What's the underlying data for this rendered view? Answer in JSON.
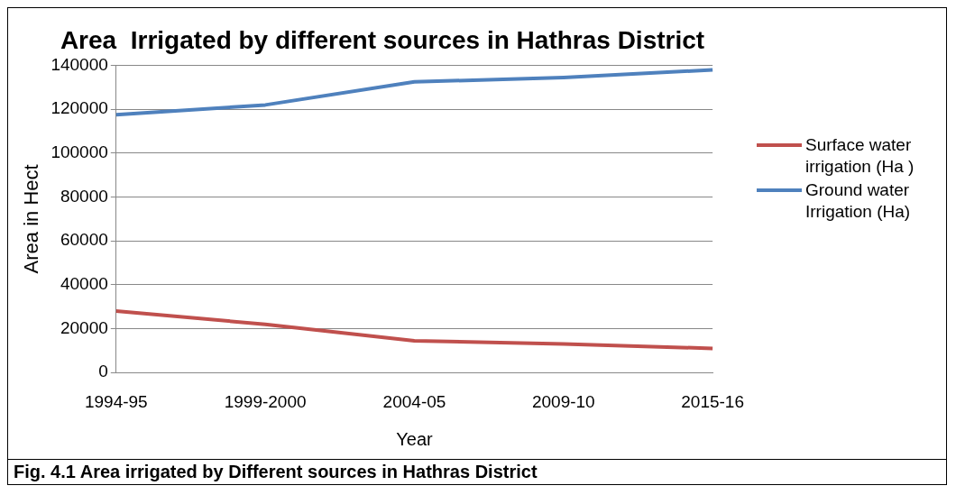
{
  "chart_data": {
    "type": "line",
    "title": "Area  Irrigated by different sources in Hathras District",
    "xlabel": "Year",
    "ylabel": "Area in Hect",
    "categories": [
      "1994-95",
      "1999-2000",
      "2004-05",
      "2009-10",
      "2015-16"
    ],
    "series": [
      {
        "name": "Surface water irrigation (Ha )",
        "color": "#c0504d",
        "values": [
          28000,
          22000,
          14500,
          13000,
          11000
        ]
      },
      {
        "name": "Ground water Irrigation (Ha)",
        "color": "#4f81bd",
        "values": [
          117500,
          122000,
          132500,
          134500,
          138000
        ]
      }
    ],
    "ylim": [
      0,
      140000
    ],
    "yticks": [
      0,
      20000,
      40000,
      60000,
      80000,
      100000,
      120000,
      140000
    ],
    "grid": "y",
    "legend": "right",
    "marker": "none",
    "line_style": "solid",
    "annotations": [
      "Fig. 4.1 Area irrigated by Different sources in Hathras District"
    ]
  }
}
